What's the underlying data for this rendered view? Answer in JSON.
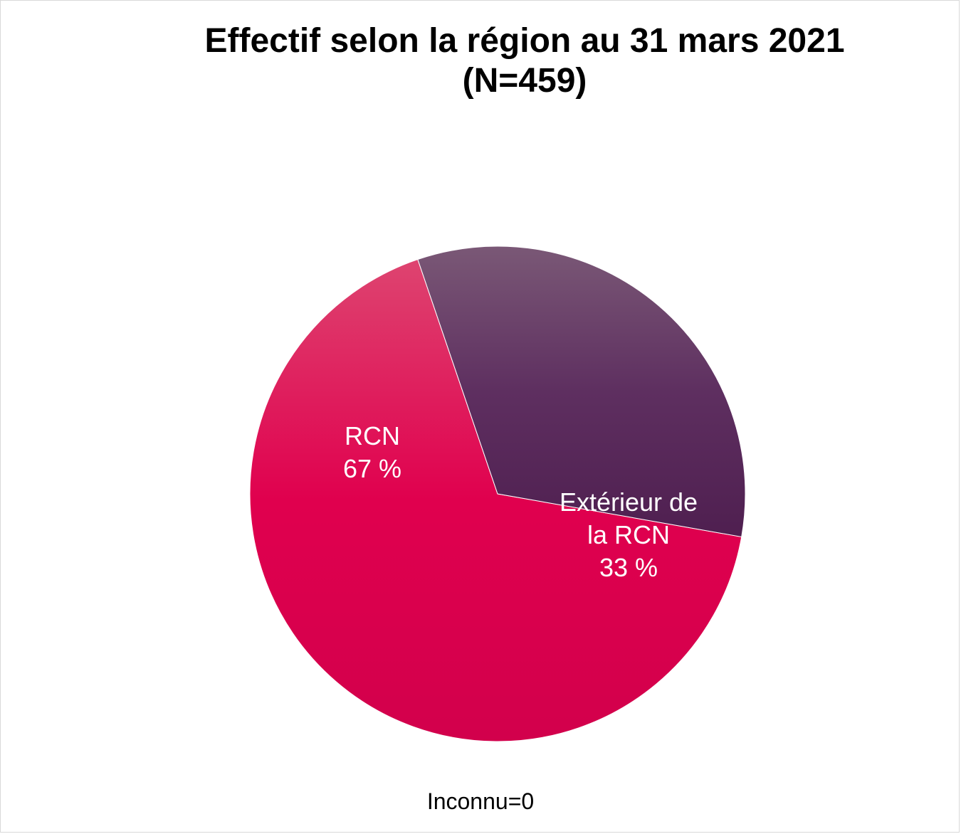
{
  "chart_data": {
    "type": "pie",
    "title": "Effectif selon la région au 31 mars 2021",
    "subtitle": "(N=459)",
    "slices": [
      {
        "label_lines": [
          "RCN"
        ],
        "value": 67,
        "value_label": "67 %",
        "color": "#e0004d"
      },
      {
        "label_lines": [
          "Extérieur de",
          "la RCN"
        ],
        "value": 33,
        "value_label": "33 %",
        "color": "#5c2b5e"
      }
    ],
    "note": "Inconnu=0"
  }
}
